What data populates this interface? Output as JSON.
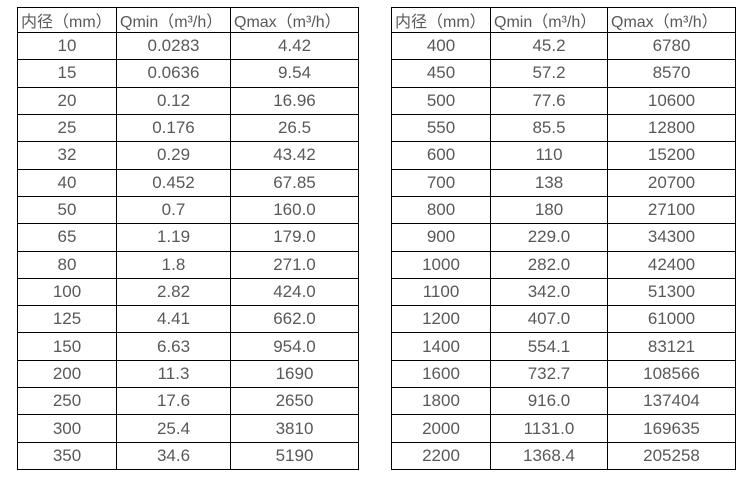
{
  "colors": {
    "text": "#595959",
    "border": "#000000",
    "background": "#ffffff"
  },
  "tables": [
    {
      "name": "flow-table-small-diameters",
      "headers": [
        "内径（mm）",
        "Qmin（m³/h）",
        "Qmax（m³/h）"
      ],
      "rows": [
        [
          "10",
          "0.0283",
          "4.42"
        ],
        [
          "15",
          "0.0636",
          "9.54"
        ],
        [
          "20",
          "0.12",
          "16.96"
        ],
        [
          "25",
          "0.176",
          "26.5"
        ],
        [
          "32",
          "0.29",
          "43.42"
        ],
        [
          "40",
          "0.452",
          "67.85"
        ],
        [
          "50",
          "0.7",
          "160.0"
        ],
        [
          "65",
          "1.19",
          "179.0"
        ],
        [
          "80",
          "1.8",
          "271.0"
        ],
        [
          "100",
          "2.82",
          "424.0"
        ],
        [
          "125",
          "4.41",
          "662.0"
        ],
        [
          "150",
          "6.63",
          "954.0"
        ],
        [
          "200",
          "11.3",
          "1690"
        ],
        [
          "250",
          "17.6",
          "2650"
        ],
        [
          "300",
          "25.4",
          "3810"
        ],
        [
          "350",
          "34.6",
          "5190"
        ]
      ]
    },
    {
      "name": "flow-table-large-diameters",
      "headers": [
        "内径（mm）",
        "Qmin（m³/h）",
        "Qmax（m³/h）"
      ],
      "rows": [
        [
          "400",
          "45.2",
          "6780"
        ],
        [
          "450",
          "57.2",
          "8570"
        ],
        [
          "500",
          "77.6",
          "10600"
        ],
        [
          "550",
          "85.5",
          "12800"
        ],
        [
          "600",
          "110",
          "15200"
        ],
        [
          "700",
          "138",
          "20700"
        ],
        [
          "800",
          "180",
          "27100"
        ],
        [
          "900",
          "229.0",
          "34300"
        ],
        [
          "1000",
          "282.0",
          "42400"
        ],
        [
          "1100",
          "342.0",
          "51300"
        ],
        [
          "1200",
          "407.0",
          "61000"
        ],
        [
          "1400",
          "554.1",
          "83121"
        ],
        [
          "1600",
          "732.7",
          "108566"
        ],
        [
          "1800",
          "916.0",
          "137404"
        ],
        [
          "2000",
          "1131.0",
          "169635"
        ],
        [
          "2200",
          "1368.4",
          "205258"
        ]
      ]
    }
  ]
}
